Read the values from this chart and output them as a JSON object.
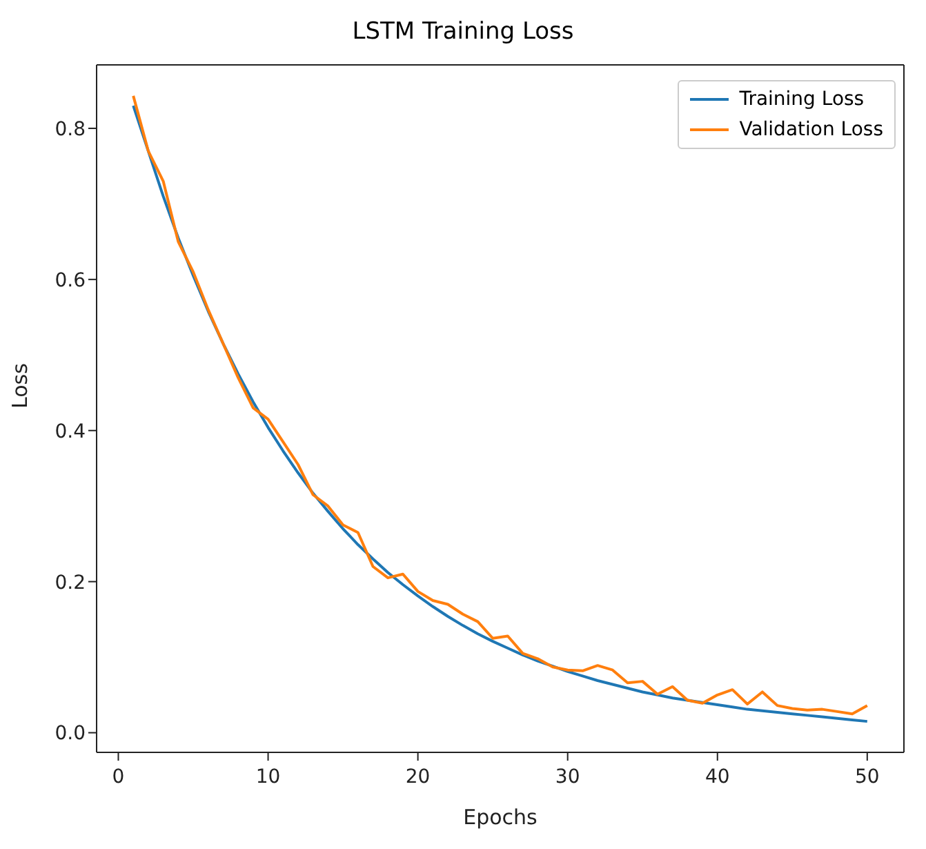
{
  "chart_data": {
    "type": "line",
    "title": "LSTM Training Loss",
    "xlabel": "Epochs",
    "ylabel": "Loss",
    "x": [
      1,
      2,
      3,
      4,
      5,
      6,
      7,
      8,
      9,
      10,
      11,
      12,
      13,
      14,
      15,
      16,
      17,
      18,
      19,
      20,
      21,
      22,
      23,
      24,
      25,
      26,
      27,
      28,
      29,
      30,
      31,
      32,
      33,
      34,
      35,
      36,
      37,
      38,
      39,
      40,
      41,
      42,
      43,
      44,
      45,
      46,
      47,
      48,
      49,
      50
    ],
    "series": [
      {
        "name": "Training Loss",
        "color": "#1f77b4",
        "values": [
          0.83,
          0.77,
          0.71,
          0.655,
          0.605,
          0.558,
          0.515,
          0.475,
          0.438,
          0.404,
          0.373,
          0.344,
          0.317,
          0.293,
          0.27,
          0.249,
          0.23,
          0.212,
          0.196,
          0.181,
          0.167,
          0.154,
          0.142,
          0.131,
          0.121,
          0.112,
          0.103,
          0.095,
          0.088,
          0.081,
          0.075,
          0.069,
          0.064,
          0.059,
          0.054,
          0.05,
          0.046,
          0.043,
          0.04,
          0.037,
          0.034,
          0.031,
          0.029,
          0.027,
          0.025,
          0.023,
          0.021,
          0.019,
          0.017,
          0.015
        ]
      },
      {
        "name": "Validation Loss",
        "color": "#ff7f0e",
        "values": [
          0.843,
          0.77,
          0.73,
          0.65,
          0.61,
          0.56,
          0.515,
          0.47,
          0.43,
          0.415,
          0.385,
          0.355,
          0.315,
          0.3,
          0.275,
          0.265,
          0.22,
          0.205,
          0.21,
          0.187,
          0.175,
          0.17,
          0.157,
          0.147,
          0.125,
          0.128,
          0.105,
          0.098,
          0.087,
          0.083,
          0.082,
          0.089,
          0.083,
          0.066,
          0.068,
          0.051,
          0.061,
          0.043,
          0.039,
          0.05,
          0.057,
          0.038,
          0.054,
          0.036,
          0.032,
          0.03,
          0.031,
          0.028,
          0.025,
          0.036
        ]
      }
    ],
    "xlim": [
      -1.45,
      52.45
    ],
    "ylim": [
      -0.026,
      0.884
    ],
    "xticks": [
      0,
      10,
      20,
      30,
      40,
      50
    ],
    "yticks": [
      {
        "value": 0,
        "label": "0.0"
      },
      {
        "value": 0.2,
        "label": "0.2"
      },
      {
        "value": 0.4,
        "label": "0.4"
      },
      {
        "value": 0.6,
        "label": "0.6"
      },
      {
        "value": 0.8,
        "label": "0.8"
      }
    ],
    "legend": "top right",
    "grid": false,
    "marker": "none",
    "line_style": "solid"
  }
}
